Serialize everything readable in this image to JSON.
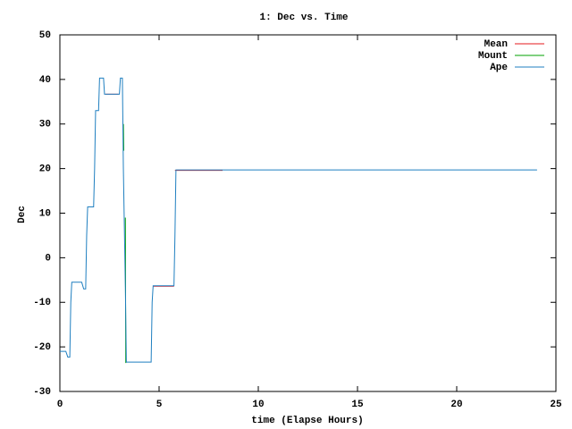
{
  "chart_data": {
    "type": "line",
    "title": "1: Dec vs. Time",
    "x_label": "time (Elapse Hours)",
    "y_label": "Dec",
    "xlim": [
      0,
      25
    ],
    "xticks": [
      0,
      5,
      10,
      15,
      20,
      25
    ],
    "ylim": [
      -30,
      50
    ],
    "yticks": [
      -30,
      -20,
      -10,
      0,
      10,
      20,
      30,
      40,
      50
    ],
    "legend": "upper-right",
    "series": [
      {
        "name": "Mean",
        "color": "#e41a1c",
        "x": [
          2.3,
          2.95,
          3.0,
          4.7,
          5.75,
          5.8,
          5.8,
          8.2
        ],
        "values": [
          36.7,
          36.7,
          null,
          -6.4,
          -6.4,
          null,
          19.6,
          19.6
        ]
      },
      {
        "name": "Mount",
        "color": "#00a000",
        "x": [
          3.2,
          3.22,
          3.25,
          3.3,
          3.32,
          3.35
        ],
        "values": [
          30,
          24,
          null,
          9,
          -23.5,
          -23.5
        ]
      },
      {
        "name": "Ape",
        "color": "#1f7fc0",
        "x": [
          0,
          0.3,
          0.4,
          0.5,
          0.55,
          0.6,
          1.1,
          1.2,
          1.3,
          1.35,
          1.4,
          1.7,
          1.75,
          1.8,
          1.95,
          2.0,
          2.2,
          2.25,
          3.0,
          3.05,
          3.15,
          3.2,
          3.3,
          3.35,
          4.6,
          4.65,
          4.7,
          5.75,
          5.8,
          5.85,
          24.05
        ],
        "values": [
          -21,
          -21,
          -22.3,
          -22.3,
          -10,
          -5.5,
          -5.5,
          -7,
          -7,
          5,
          11.4,
          11.4,
          20,
          33,
          33,
          40.3,
          40.3,
          36.7,
          36.7,
          40.3,
          40.3,
          20,
          -6.5,
          -23.4,
          -23.4,
          -10,
          -6.3,
          -6.3,
          5,
          19.7,
          19.7
        ]
      }
    ]
  }
}
